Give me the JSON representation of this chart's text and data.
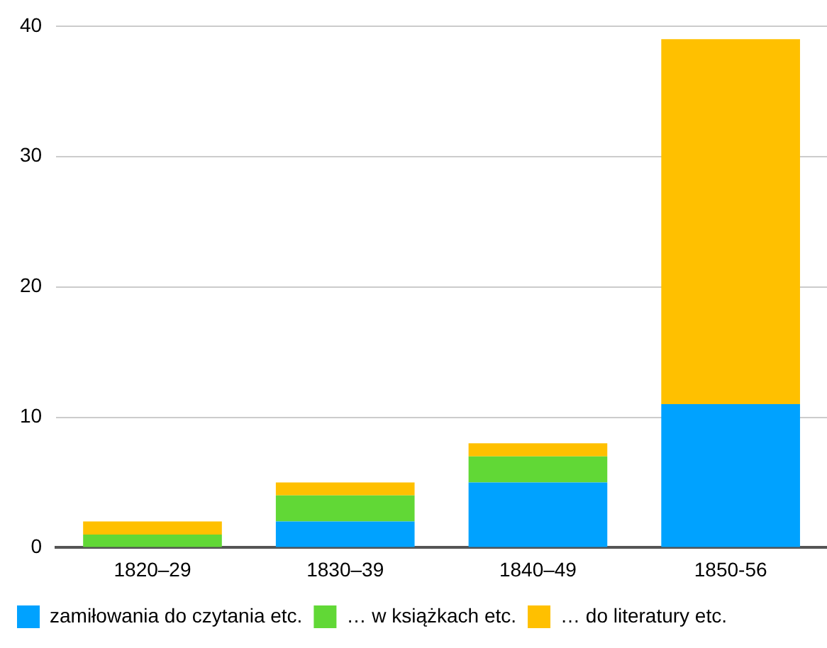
{
  "chart_data": {
    "type": "bar",
    "stacked": true,
    "categories": [
      "1820–29",
      "1830–39",
      "1840–49",
      "1850-56"
    ],
    "series": [
      {
        "name": "zamiłowania do czytania etc.",
        "color": "#00a2ff",
        "values": [
          0,
          2,
          5,
          11
        ]
      },
      {
        "name": "… w książkach etc.",
        "color": "#61d836",
        "values": [
          1,
          2,
          2,
          0
        ]
      },
      {
        "name": "… do literatury etc.",
        "color": "#ffc000",
        "values": [
          1,
          1,
          1,
          28
        ]
      }
    ],
    "ylim": [
      0,
      40
    ],
    "yticks": [
      0,
      10,
      20,
      30,
      40
    ],
    "grid": "y",
    "legend": "bottom"
  }
}
